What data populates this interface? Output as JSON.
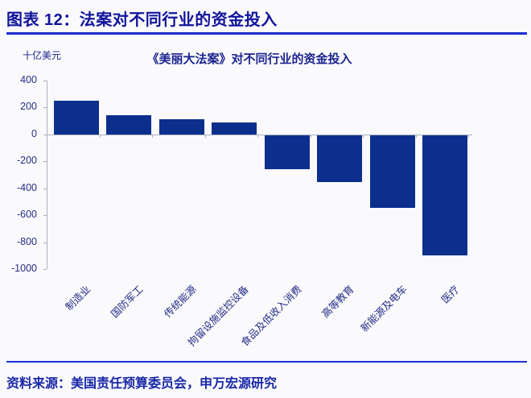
{
  "figure_header": {
    "title": "图表 12：法案对不同行业的资金投入"
  },
  "chart_data": {
    "type": "bar",
    "title": "《美丽大法案》对不同行业的资金投入",
    "unit_label": "十亿美元",
    "categories": [
      "制造业",
      "国防军工",
      "传统能源",
      "拘留设施监控设备",
      "食品及低收入消费",
      "高等教育",
      "新能源及电车",
      "医疗"
    ],
    "values": [
      250,
      145,
      110,
      90,
      -250,
      -350,
      -540,
      -890
    ],
    "ylabel": "十亿美元",
    "xlabel": "",
    "ylim": [
      -1000,
      400
    ],
    "yticks": [
      400,
      200,
      0,
      -200,
      -400,
      -600,
      -800,
      -1000
    ],
    "grid": false,
    "legend": "none",
    "bar_color": "#0c2f8e",
    "label_rotation_deg": 45
  },
  "source_note": "资料来源：美国责任预算委员会，申万宏源研究",
  "colors": {
    "bar": "#0c2f8e",
    "heading_text": "#11149b",
    "divider": "#1b2fd0",
    "axis_line": "#aab0be",
    "tick_text": "#232c86",
    "source_text": "#1a28a8",
    "background": "#fafafc"
  }
}
